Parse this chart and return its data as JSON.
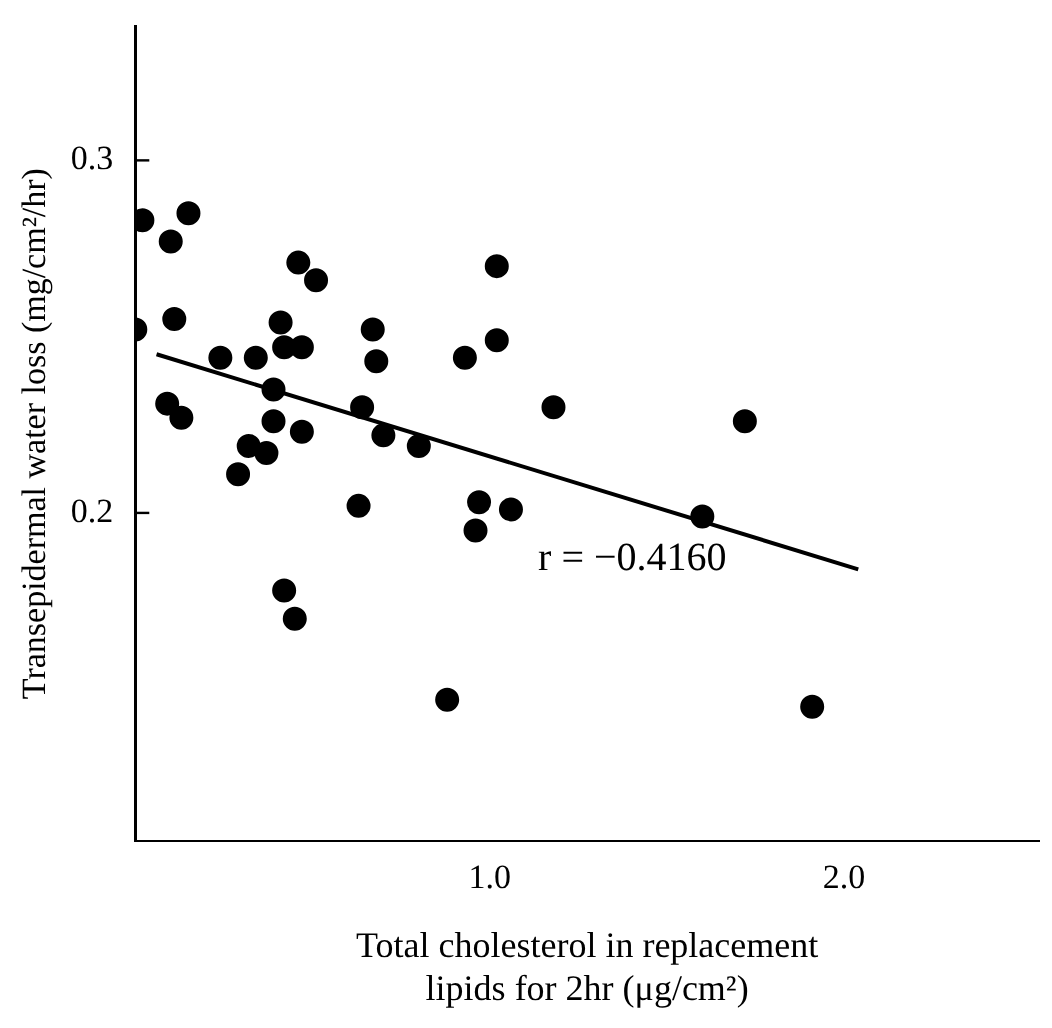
{
  "chart_data": {
    "type": "scatter",
    "xlabel": "Total cholesterol in replacement lipids for 2hr (μg/cm²)",
    "ylabel": "Transepidermal water loss (mg/cm²/hr)",
    "annotations": [
      "r = −0.4160"
    ],
    "xlim": [
      0,
      2.55
    ],
    "ylim": [
      0.107,
      0.338
    ],
    "xticks": [
      {
        "value": 1,
        "label": "1.0"
      },
      {
        "value": 2,
        "label": "2.0"
      }
    ],
    "yticks": [
      0.2,
      0.3
    ],
    "grid": false,
    "legend": false,
    "series": [
      {
        "marker": "circle",
        "color": "#000000",
        "x": [
          0.0,
          0.02,
          0.15,
          0.1,
          0.11,
          0.09,
          0.13,
          0.24,
          0.34,
          0.29,
          0.32,
          0.37,
          0.39,
          0.39,
          0.41,
          0.42,
          0.47,
          0.46,
          0.51,
          0.47,
          0.42,
          0.45,
          0.63,
          0.64,
          0.67,
          0.68,
          0.7,
          0.8,
          0.88,
          0.93,
          1.02,
          1.02,
          0.97,
          0.96,
          1.06,
          1.18,
          1.72,
          1.6,
          1.91
        ],
        "values": [
          0.252,
          0.283,
          0.285,
          0.277,
          0.255,
          0.231,
          0.227,
          0.244,
          0.244,
          0.211,
          0.219,
          0.217,
          0.235,
          0.226,
          0.254,
          0.247,
          0.247,
          0.271,
          0.266,
          0.223,
          0.178,
          0.17,
          0.202,
          0.23,
          0.252,
          0.243,
          0.222,
          0.219,
          0.147,
          0.244,
          0.249,
          0.27,
          0.203,
          0.195,
          0.201,
          0.23,
          0.226,
          0.199,
          0.145
        ]
      },
      {
        "type": "line",
        "color": "#000000",
        "x": [
          0.06,
          2.04
        ],
        "values": [
          0.245,
          0.184
        ]
      }
    ]
  }
}
